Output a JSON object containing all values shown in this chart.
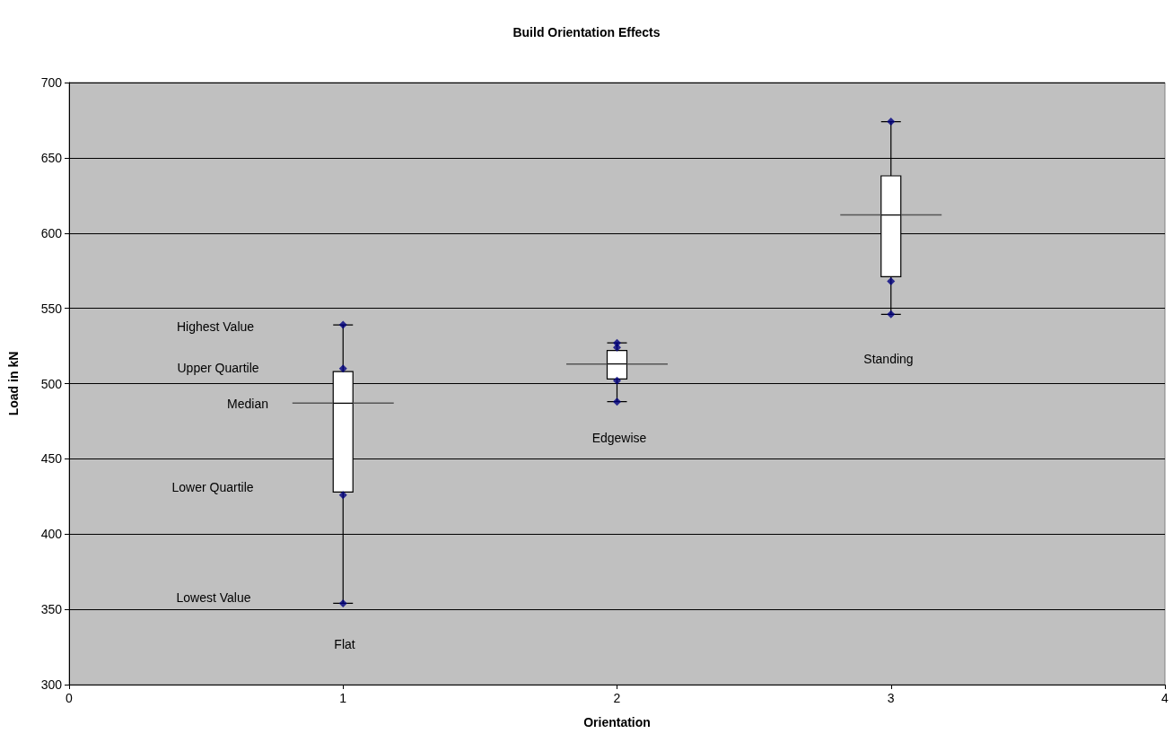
{
  "chart_data": {
    "type": "box",
    "title": "Build Orientation Effects",
    "xlabel": "Orientation",
    "ylabel": "Load in kN",
    "x": [
      1,
      2,
      3
    ],
    "boxes": [
      {
        "low": 354,
        "q1": 428,
        "median": 487,
        "q3": 508,
        "high": 539
      },
      {
        "low": 488,
        "q1": 503,
        "median": 513,
        "q3": 522,
        "high": 527
      },
      {
        "low": 546,
        "q1": 571,
        "median": 612,
        "q3": 638,
        "high": 674
      }
    ],
    "series": [
      {
        "type": "scatter",
        "color": "#000080",
        "x": [
          1,
          1,
          1,
          1,
          2,
          2,
          2,
          2,
          3,
          3,
          3
        ],
        "values": [
          539,
          510,
          426,
          354,
          527,
          524,
          502,
          488,
          674,
          568,
          546
        ]
      }
    ],
    "marker": "diamond",
    "xlim": [
      0,
      4
    ],
    "xticks": [
      0,
      1,
      2,
      3,
      4
    ],
    "ylim": [
      300,
      700
    ],
    "yticks": [
      300,
      350,
      400,
      450,
      500,
      550,
      600,
      650,
      700
    ],
    "grid": "y",
    "annotations": [
      "Highest Value",
      "Upper Quartile",
      "Median",
      "Lower Quartile",
      "Lowest Value",
      "Flat",
      "Edgewise",
      "Standing"
    ]
  }
}
